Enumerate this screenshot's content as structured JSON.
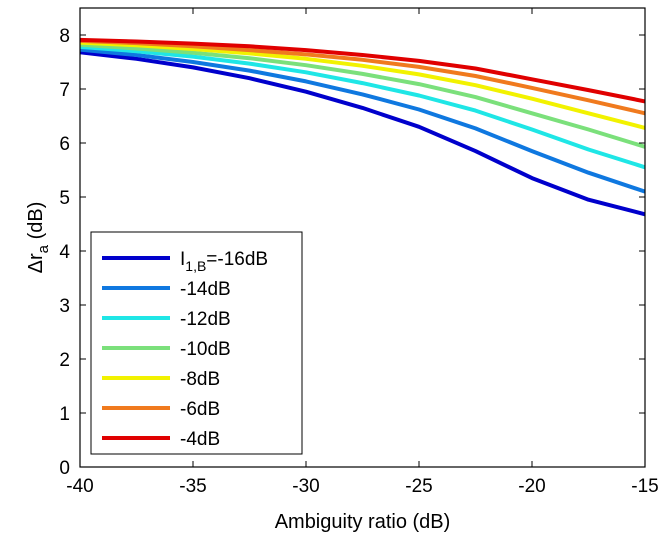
{
  "chart_data": {
    "type": "line",
    "xlabel": "Ambiguity ratio (dB)",
    "ylabel": {
      "main": "Δr",
      "sub": "a",
      "unit": " (dB)"
    },
    "xlim": [
      -40,
      -15
    ],
    "ylim": [
      0,
      8.5
    ],
    "xticks": [
      -40,
      -35,
      -30,
      -25,
      -20,
      -15
    ],
    "yticks": [
      0,
      1,
      2,
      3,
      4,
      5,
      6,
      7,
      8
    ],
    "grid": false,
    "legend_position": "lower-left",
    "x": [
      -40,
      -37.5,
      -35,
      -32.5,
      -30,
      -27.5,
      -25,
      -22.5,
      -20,
      -17.5,
      -15
    ],
    "series": [
      {
        "name": "I1,B=-16dB",
        "legend": {
          "main": "I",
          "sub": "1,B",
          "rest": "=-16dB"
        },
        "color": "#0000cc",
        "values": [
          7.68,
          7.56,
          7.4,
          7.2,
          6.95,
          6.65,
          6.3,
          5.85,
          5.35,
          4.95,
          4.68
        ]
      },
      {
        "name": "-14dB",
        "legend": {
          "main": "-14dB"
        },
        "color": "#0f78e0",
        "values": [
          7.73,
          7.63,
          7.5,
          7.34,
          7.14,
          6.9,
          6.62,
          6.27,
          5.85,
          5.45,
          5.1
        ]
      },
      {
        "name": "-12dB",
        "legend": {
          "main": "-12dB"
        },
        "color": "#1fe6e6",
        "values": [
          7.78,
          7.7,
          7.6,
          7.47,
          7.31,
          7.11,
          6.88,
          6.6,
          6.25,
          5.88,
          5.55
        ]
      },
      {
        "name": "-10dB",
        "legend": {
          "main": "-10dB"
        },
        "color": "#7be07b",
        "values": [
          7.82,
          7.75,
          7.67,
          7.57,
          7.44,
          7.28,
          7.09,
          6.85,
          6.55,
          6.25,
          5.93
        ]
      },
      {
        "name": "-8dB",
        "legend": {
          "main": "-8dB"
        },
        "color": "#f2f200",
        "values": [
          7.86,
          7.81,
          7.74,
          7.66,
          7.56,
          7.43,
          7.27,
          7.07,
          6.82,
          6.55,
          6.28
        ]
      },
      {
        "name": "-6dB",
        "legend": {
          "main": "-6dB"
        },
        "color": "#f07a1e",
        "values": [
          7.89,
          7.85,
          7.79,
          7.72,
          7.64,
          7.54,
          7.41,
          7.24,
          7.02,
          6.79,
          6.55
        ]
      },
      {
        "name": "-4dB",
        "legend": {
          "main": "-4dB"
        },
        "color": "#e00000",
        "values": [
          7.91,
          7.88,
          7.84,
          7.79,
          7.72,
          7.63,
          7.52,
          7.38,
          7.18,
          6.98,
          6.77
        ]
      }
    ]
  }
}
